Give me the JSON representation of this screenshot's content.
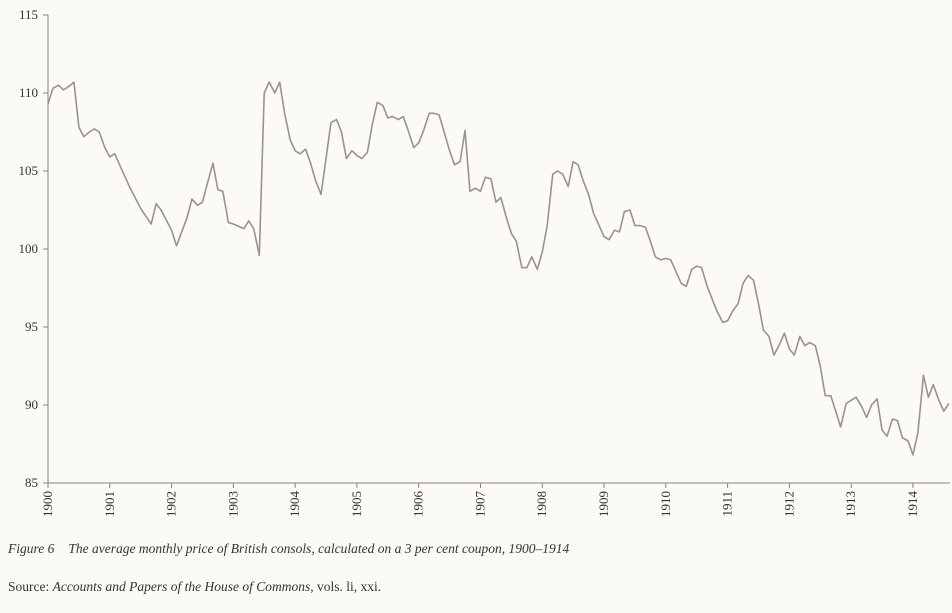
{
  "chart_data": {
    "type": "line",
    "color": "#9c9090",
    "xlim": [
      1900,
      1914.6
    ],
    "ylim": [
      85,
      115
    ],
    "xticks": [
      1900,
      1901,
      1902,
      1903,
      1904,
      1905,
      1906,
      1907,
      1908,
      1909,
      1910,
      1911,
      1912,
      1913,
      1914
    ],
    "yticks": [
      85,
      90,
      95,
      100,
      105,
      110,
      115
    ],
    "x": [
      1900.0,
      1900.08,
      1900.17,
      1900.25,
      1900.33,
      1900.42,
      1900.5,
      1900.58,
      1900.67,
      1900.75,
      1900.83,
      1900.92,
      1901.0,
      1901.08,
      1901.17,
      1901.33,
      1901.5,
      1901.67,
      1901.75,
      1901.83,
      1902.0,
      1902.08,
      1902.25,
      1902.33,
      1902.42,
      1902.5,
      1902.58,
      1902.67,
      1902.75,
      1902.83,
      1902.92,
      1903.0,
      1903.17,
      1903.25,
      1903.33,
      1903.42,
      1903.5,
      1903.58,
      1903.67,
      1903.75,
      1903.83,
      1903.92,
      1904.0,
      1904.08,
      1904.17,
      1904.25,
      1904.33,
      1904.42,
      1904.5,
      1904.58,
      1904.67,
      1904.75,
      1904.83,
      1904.92,
      1905.0,
      1905.08,
      1905.17,
      1905.25,
      1905.33,
      1905.42,
      1905.5,
      1905.58,
      1905.67,
      1905.75,
      1905.83,
      1905.92,
      1906.0,
      1906.08,
      1906.17,
      1906.25,
      1906.33,
      1906.42,
      1906.5,
      1906.58,
      1906.67,
      1906.75,
      1906.83,
      1906.92,
      1907.0,
      1907.08,
      1907.17,
      1907.25,
      1907.33,
      1907.42,
      1907.5,
      1907.58,
      1907.67,
      1907.75,
      1907.83,
      1907.92,
      1908.0,
      1908.08,
      1908.17,
      1908.25,
      1908.33,
      1908.42,
      1908.5,
      1908.58,
      1908.67,
      1908.75,
      1908.83,
      1908.92,
      1909.0,
      1909.08,
      1909.17,
      1909.25,
      1909.33,
      1909.42,
      1909.5,
      1909.58,
      1909.67,
      1909.75,
      1909.83,
      1909.92,
      1910.0,
      1910.08,
      1910.17,
      1910.25,
      1910.33,
      1910.42,
      1910.5,
      1910.58,
      1910.67,
      1910.75,
      1910.83,
      1910.92,
      1911.0,
      1911.08,
      1911.17,
      1911.25,
      1911.33,
      1911.42,
      1911.5,
      1911.58,
      1911.67,
      1911.75,
      1911.83,
      1911.92,
      1912.0,
      1912.08,
      1912.17,
      1912.25,
      1912.33,
      1912.42,
      1912.5,
      1912.58,
      1912.67,
      1912.75,
      1912.83,
      1912.92,
      1913.0,
      1913.08,
      1913.17,
      1913.25,
      1913.33,
      1913.42,
      1913.5,
      1913.58,
      1913.67,
      1913.75,
      1913.83,
      1913.92,
      1914.0,
      1914.08,
      1914.17,
      1914.25,
      1914.33,
      1914.42,
      1914.5,
      1914.58
    ],
    "values": [
      109.3,
      110.3,
      110.5,
      110.2,
      110.4,
      110.7,
      107.8,
      107.2,
      107.5,
      107.7,
      107.5,
      106.5,
      105.9,
      106.1,
      105.3,
      103.9,
      102.6,
      101.6,
      102.9,
      102.5,
      101.2,
      100.2,
      102.0,
      103.2,
      102.8,
      103.0,
      104.2,
      105.5,
      103.8,
      103.7,
      101.7,
      101.6,
      101.3,
      101.8,
      101.3,
      99.6,
      110.0,
      110.7,
      110.0,
      110.7,
      108.7,
      107.0,
      106.3,
      106.1,
      106.4,
      105.5,
      104.4,
      103.5,
      105.8,
      108.1,
      108.3,
      107.5,
      105.8,
      106.3,
      106.0,
      105.8,
      106.2,
      108.0,
      109.4,
      109.2,
      108.4,
      108.5,
      108.3,
      108.5,
      107.6,
      106.5,
      106.8,
      107.6,
      108.7,
      108.7,
      108.6,
      107.4,
      106.3,
      105.4,
      105.6,
      107.6,
      103.7,
      103.9,
      103.7,
      104.6,
      104.5,
      103.0,
      103.3,
      102.0,
      101.0,
      100.5,
      98.8,
      98.8,
      99.5,
      98.7,
      99.8,
      101.5,
      104.8,
      105.0,
      104.8,
      104.0,
      105.6,
      105.4,
      104.3,
      103.5,
      102.3,
      101.5,
      100.8,
      100.6,
      101.2,
      101.1,
      102.4,
      102.5,
      101.5,
      101.5,
      101.4,
      100.5,
      99.5,
      99.3,
      99.4,
      99.3,
      98.5,
      97.8,
      97.6,
      98.7,
      98.9,
      98.8,
      97.6,
      96.8,
      96.0,
      95.3,
      95.4,
      96.0,
      96.5,
      97.8,
      98.3,
      98.0,
      96.5,
      94.8,
      94.4,
      93.2,
      93.8,
      94.6,
      93.6,
      93.2,
      94.4,
      93.8,
      94.0,
      93.8,
      92.5,
      90.6,
      90.6,
      89.6,
      88.6,
      90.1,
      90.3,
      90.5,
      89.9,
      89.2,
      90.0,
      90.4,
      88.4,
      88.0,
      89.1,
      89.0,
      87.9,
      87.7,
      86.8,
      88.2,
      91.9,
      90.5,
      91.3,
      90.3,
      89.6,
      90.1
    ],
    "caption": {
      "label": "Figure 6",
      "text": "The average monthly price of British consols, calculated on a 3 per cent coupon, 1900–1914"
    },
    "source": {
      "prefix": "Source:",
      "title": "Accounts and Papers of the House of Commons",
      "suffix": ", vols. li, xxi."
    }
  }
}
